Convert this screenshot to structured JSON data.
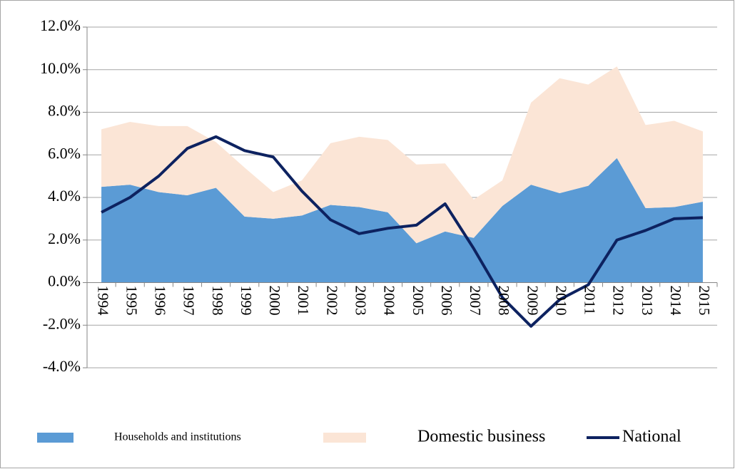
{
  "chart_data": {
    "type": "stacked-area-line",
    "categories": [
      "1994",
      "1995",
      "1996",
      "1997",
      "1998",
      "1999",
      "2000",
      "2001",
      "2002",
      "2003",
      "2004",
      "2005",
      "2006",
      "2007",
      "2008",
      "2009",
      "2010",
      "2011",
      "2012",
      "2013",
      "2014",
      "2015"
    ],
    "series": [
      {
        "name": "Households and institutions",
        "color": "#5b9bd5",
        "kind": "area",
        "values": [
          4.5,
          4.6,
          4.25,
          4.1,
          4.45,
          3.1,
          3.0,
          3.15,
          3.65,
          3.55,
          3.3,
          1.85,
          2.4,
          2.1,
          3.6,
          4.6,
          4.2,
          4.55,
          5.85,
          3.5,
          3.55,
          3.8
        ]
      },
      {
        "name": "Domestic business",
        "color": "#fbe5d6",
        "kind": "area",
        "values": [
          2.7,
          2.95,
          3.1,
          3.25,
          2.15,
          2.3,
          1.25,
          1.65,
          2.9,
          3.3,
          3.4,
          3.7,
          3.2,
          1.8,
          1.2,
          3.85,
          5.4,
          4.75,
          4.3,
          3.9,
          4.05,
          3.3
        ]
      },
      {
        "name": "National",
        "color": "#0d2260",
        "kind": "line",
        "values": [
          3.3,
          4.0,
          5.0,
          6.3,
          6.85,
          6.2,
          5.9,
          4.3,
          2.95,
          2.3,
          2.55,
          2.7,
          3.7,
          1.6,
          -0.7,
          -2.05,
          -0.8,
          -0.1,
          2.0,
          2.45,
          3.0,
          3.05
        ]
      }
    ],
    "ylim": [
      -4,
      12
    ],
    "yticks": [
      {
        "value": -4,
        "label": "-4.0%"
      },
      {
        "value": -2,
        "label": "-2.0%"
      },
      {
        "value": 0,
        "label": "0.0%"
      },
      {
        "value": 2,
        "label": "2.0%"
      },
      {
        "value": 4,
        "label": "4.0%"
      },
      {
        "value": 6,
        "label": "6.0%"
      },
      {
        "value": 8,
        "label": "8.0%"
      },
      {
        "value": 10,
        "label": "10.0%"
      },
      {
        "value": 12,
        "label": "12.0%"
      }
    ],
    "grid": true,
    "legend": "bottom"
  }
}
